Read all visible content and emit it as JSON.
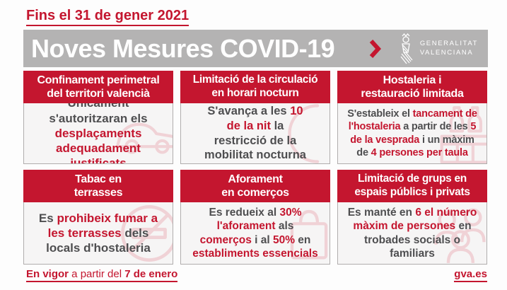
{
  "colors": {
    "red": "#c4162f",
    "banner-gray": "#b4b3b3",
    "card-bg": "#f6f5f5",
    "border": "#b0adad",
    "text-dark": "#4e4e50",
    "watermark": "#f0d2d6",
    "page-bg": "#fdfdfd"
  },
  "header": {
    "date_note": "Fins el 31 de gener 2021"
  },
  "banner": {
    "title": "Noves Mesures COVID-19",
    "chevron_icon": "chevron-right-icon",
    "logo_icon": "gva-emblem-icon",
    "logo_line1": "GENERALITAT",
    "logo_line2": "VALENCIANA"
  },
  "cards": [
    {
      "title": "Confinament perimetral\ndel territori valencià",
      "icon": "car-watermark-icon",
      "segments": [
        {
          "t": "Únicament\ns'autoritzaran els\n"
        },
        {
          "t": "desplaçaments\nadequadament\njustificats",
          "em": true
        }
      ]
    },
    {
      "title": "Limitació de la circulació\nen horari nocturn",
      "icon": "moon-watermark-icon",
      "segments": [
        {
          "t": "S'avança a les "
        },
        {
          "t": "10\nde la nit",
          "em": true
        },
        {
          "t": " la\nrestricció de la\nmobilitat nocturna"
        }
      ]
    },
    {
      "title": "Hostaleria i\nrestauració limitada",
      "icon": "bar-watermark-icon",
      "segments": [
        {
          "t": "S'estableix el "
        },
        {
          "t": "tancament de\nl'hostaleria",
          "em": true
        },
        {
          "t": " a partir de les "
        },
        {
          "t": "5\nde la vesprada",
          "em": true
        },
        {
          "t": " i un màxim\nde "
        },
        {
          "t": "4 persones per taula",
          "em": true
        }
      ]
    },
    {
      "title": "Tabac en\nterrasses",
      "icon": "no-smoking-watermark-icon",
      "segments": [
        {
          "t": "Es "
        },
        {
          "t": "prohibeix fumar a\nles terrasses",
          "em": true
        },
        {
          "t": " dels\nlocals d'hostaleria"
        }
      ]
    },
    {
      "title": "Aforament\nen comerços",
      "icon": "shopping-bag-watermark-icon",
      "segments": [
        {
          "t": "Es redueix al "
        },
        {
          "t": "30%\nl'aforament",
          "em": true
        },
        {
          "t": " als\n"
        },
        {
          "t": "comerços",
          "em": true
        },
        {
          "t": " i al "
        },
        {
          "t": "50%",
          "em": true
        },
        {
          "t": " en\n"
        },
        {
          "t": "establiments essencials",
          "em": true
        }
      ]
    },
    {
      "title": "Limitació de grups en\nespais públics i privats",
      "icon": "people-watermark-icon",
      "segments": [
        {
          "t": "Es manté en "
        },
        {
          "t": "6 el número\nmàxim de persones",
          "em": true
        },
        {
          "t": " en\ntrobades socials o\nfamiliars"
        }
      ]
    }
  ],
  "footer": {
    "left_segments": [
      {
        "t": "En vigor",
        "em": true
      },
      {
        "t": " a partir del "
      },
      {
        "t": "7 de enero",
        "em": true
      }
    ],
    "right": "gva.es"
  }
}
